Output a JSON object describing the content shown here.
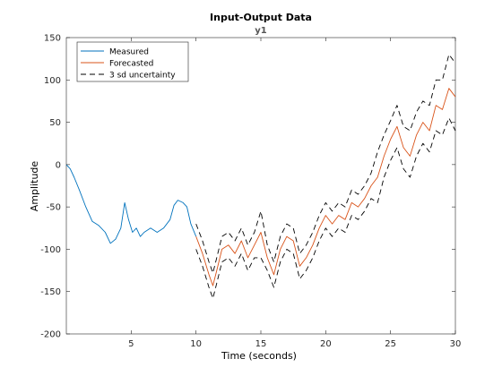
{
  "chart_data": {
    "type": "line",
    "title": "Input-Output Data",
    "subtitle": "y1",
    "xlabel": "Time (seconds)",
    "ylabel": "Amplitude",
    "xlim": [
      0,
      30
    ],
    "ylim": [
      -200,
      150
    ],
    "xticks": [
      5,
      10,
      15,
      20,
      25,
      30
    ],
    "yticks": [
      -200,
      -150,
      -100,
      -50,
      0,
      50,
      100,
      150
    ],
    "grid": false,
    "legend_position": "top-left",
    "legend": [
      "Measured",
      "Forecasted",
      "3 sd uncertainty"
    ],
    "colors": {
      "measured": "#0072BD",
      "forecasted": "#D95319",
      "uncertainty": "#000000",
      "axes": "#262626"
    },
    "series": [
      {
        "name": "Measured",
        "style": "solid",
        "x": [
          0,
          0.3,
          0.6,
          1,
          1.5,
          2,
          2.5,
          3,
          3.4,
          3.8,
          4.2,
          4.5,
          4.8,
          5.1,
          5.4,
          5.7,
          6,
          6.5,
          7,
          7.5,
          8,
          8.3,
          8.6,
          9,
          9.3,
          9.6,
          10
        ],
        "y": [
          0,
          -5,
          -15,
          -30,
          -50,
          -67,
          -72,
          -80,
          -93,
          -88,
          -75,
          -45,
          -65,
          -80,
          -75,
          -85,
          -80,
          -75,
          -80,
          -75,
          -65,
          -48,
          -42,
          -45,
          -50,
          -70,
          -85
        ]
      },
      {
        "name": "Forecasted",
        "style": "solid",
        "x": [
          10,
          10.5,
          11,
          11.3,
          11.6,
          12,
          12.5,
          13,
          13.5,
          14,
          14.5,
          15,
          15.5,
          16,
          16.5,
          17,
          17.5,
          18,
          18.5,
          19,
          19.5,
          20,
          20.5,
          21,
          21.5,
          22,
          22.5,
          23,
          23.5,
          24,
          24.5,
          25,
          25.5,
          26,
          26.5,
          27,
          27.5,
          28,
          28.5,
          29,
          29.5,
          30
        ],
        "y": [
          -85,
          -105,
          -130,
          -143,
          -125,
          -100,
          -95,
          -105,
          -90,
          -110,
          -95,
          -80,
          -110,
          -130,
          -100,
          -85,
          -90,
          -120,
          -110,
          -95,
          -75,
          -60,
          -70,
          -60,
          -65,
          -45,
          -50,
          -40,
          -25,
          -15,
          10,
          30,
          45,
          20,
          10,
          35,
          50,
          40,
          70,
          65,
          90,
          80
        ]
      },
      {
        "name": "3 sd uncertainty",
        "style": "dashed",
        "x": [
          10,
          10.5,
          11,
          11.3,
          11.6,
          12,
          12.5,
          13,
          13.5,
          14,
          14.5,
          15,
          15.5,
          16,
          16.5,
          17,
          17.5,
          18,
          18.5,
          19,
          19.5,
          20,
          20.5,
          21,
          21.5,
          22,
          22.5,
          23,
          23.5,
          24,
          24.5,
          25,
          25.5,
          26,
          26.5,
          27,
          27.5,
          28,
          28.5,
          29,
          29.5,
          30
        ],
        "y": [
          -70,
          -90,
          -115,
          -128,
          -110,
          -85,
          -80,
          -90,
          -75,
          -95,
          -80,
          -55,
          -95,
          -115,
          -85,
          -70,
          -75,
          -105,
          -95,
          -80,
          -60,
          -45,
          -55,
          -45,
          -50,
          -30,
          -35,
          -25,
          -10,
          15,
          35,
          52,
          70,
          45,
          40,
          62,
          75,
          70,
          100,
          100,
          130,
          120
        ]
      },
      {
        "name": "3 sd uncertainty lower",
        "style": "dashed",
        "x": [
          10,
          10.5,
          11,
          11.3,
          11.6,
          12,
          12.5,
          13,
          13.5,
          14,
          14.5,
          15,
          15.5,
          16,
          16.5,
          17,
          17.5,
          18,
          18.5,
          19,
          19.5,
          20,
          20.5,
          21,
          21.5,
          22,
          22.5,
          23,
          23.5,
          24,
          24.5,
          25,
          25.5,
          26,
          26.5,
          27,
          27.5,
          28,
          28.5,
          29,
          29.5,
          30
        ],
        "y": [
          -100,
          -120,
          -145,
          -158,
          -140,
          -115,
          -110,
          -120,
          -105,
          -125,
          -110,
          -110,
          -125,
          -145,
          -115,
          -100,
          -105,
          -135,
          -125,
          -110,
          -90,
          -75,
          -85,
          -75,
          -80,
          -60,
          -65,
          -55,
          -40,
          -45,
          -15,
          5,
          20,
          -5,
          -15,
          10,
          25,
          15,
          40,
          35,
          55,
          40
        ]
      }
    ]
  }
}
